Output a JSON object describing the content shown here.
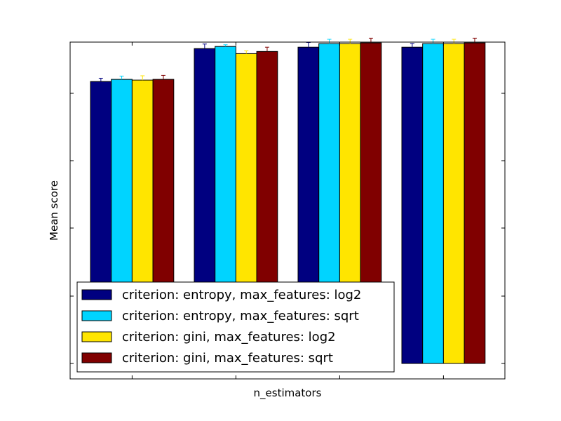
{
  "chart_data": {
    "type": "bar",
    "title": "",
    "xlabel": "n_estimators",
    "ylabel": "Mean score",
    "ylim": [
      0.0,
      1.0
    ],
    "grid": false,
    "legend_position": "lower-left",
    "categories": [
      "",
      "",
      "",
      ""
    ],
    "series": [
      {
        "name": "criterion: entropy, max_features: log2",
        "color": "#000080",
        "values": [
          0.9,
          0.923,
          0.924,
          0.924
        ],
        "errors": [
          0.0023,
          0.0032,
          0.0033,
          0.0026
        ]
      },
      {
        "name": "criterion: entropy, max_features: sqrt",
        "color": "#00d4ff",
        "values": [
          0.9015,
          0.9245,
          0.9265,
          0.9265
        ],
        "errors": [
          0.0023,
          0.0012,
          0.003,
          0.003
        ]
      },
      {
        "name": "criterion: gini, max_features: log2",
        "color": "#ffe500",
        "values": [
          0.901,
          0.9195,
          0.9265,
          0.9265
        ],
        "errors": [
          0.003,
          0.0019,
          0.003,
          0.003
        ]
      },
      {
        "name": "criterion: gini, max_features: sqrt",
        "color": "#800000",
        "values": [
          0.9015,
          0.921,
          0.927,
          0.927
        ],
        "errors": [
          0.0028,
          0.003,
          0.0033,
          0.0033
        ]
      }
    ]
  },
  "colors": {
    "background": "#ffffff",
    "axes": "#000000",
    "error_bars": [
      "#000080",
      "#00d4ff",
      "#ffe500",
      "#800000"
    ]
  }
}
